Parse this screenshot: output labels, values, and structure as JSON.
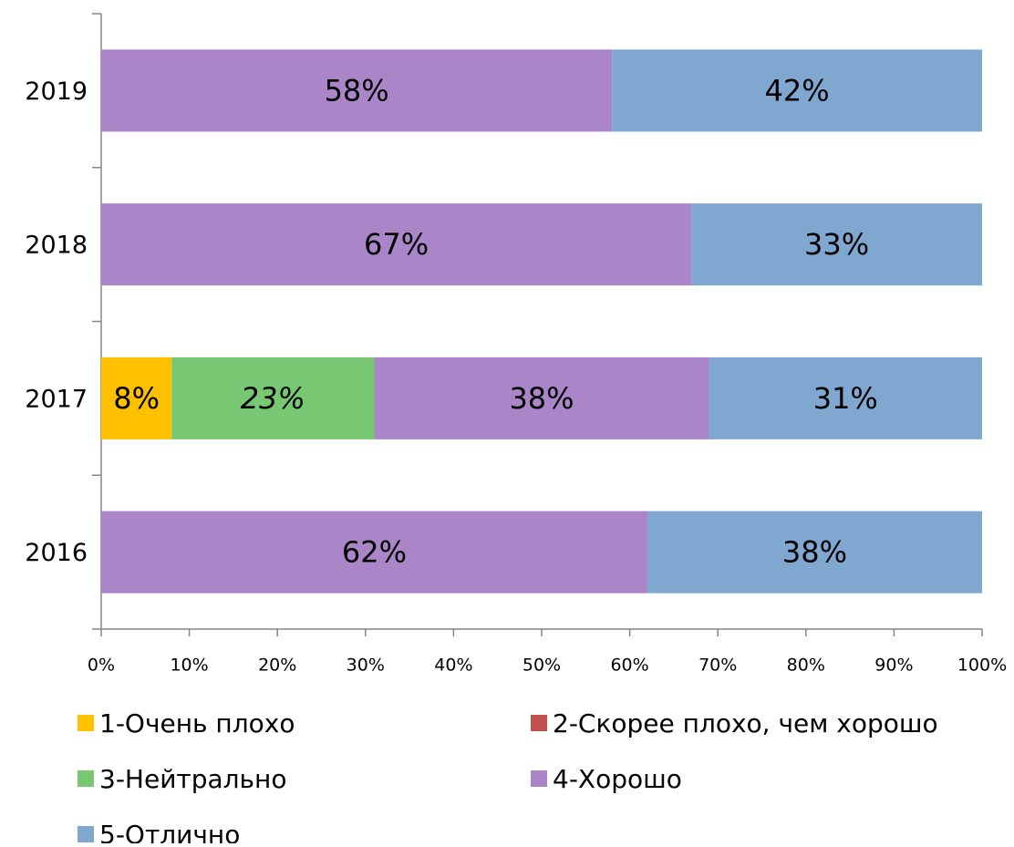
{
  "chart_data": {
    "type": "stacked-barh",
    "categories": [
      "2016",
      "2017",
      "2018",
      "2019"
    ],
    "series": [
      {
        "name": "1-Очень плохо",
        "color": "#ffc000",
        "values": [
          null,
          8,
          null,
          null
        ],
        "value_labels": [
          null,
          "8%",
          null,
          null
        ]
      },
      {
        "name": "2-Скорее плохо, чем хорошо",
        "color": "#c0504d",
        "values": [
          null,
          null,
          null,
          null
        ],
        "value_labels": [
          null,
          null,
          null,
          null
        ]
      },
      {
        "name": "3-Нейтрально",
        "color": "#77c773",
        "values": [
          null,
          23,
          null,
          null
        ],
        "value_labels": [
          null,
          "23%",
          null,
          null
        ]
      },
      {
        "name": "4-Хорошо",
        "color": "#aa85c8",
        "values": [
          62,
          38,
          67,
          58
        ],
        "value_labels": [
          "62%",
          "38%",
          "67%",
          "58%"
        ]
      },
      {
        "name": "5-Отлично",
        "color": "#7fa7cf",
        "values": [
          38,
          31,
          33,
          42
        ],
        "value_labels": [
          "38%",
          "31%",
          "33%",
          "42%"
        ]
      }
    ],
    "xlim": [
      0,
      100
    ],
    "xticks": [
      {
        "value": 0,
        "label": "0%"
      },
      {
        "value": 10,
        "label": "10%"
      },
      {
        "value": 20,
        "label": "20%"
      },
      {
        "value": 30,
        "label": "30%"
      },
      {
        "value": 40,
        "label": "40%"
      },
      {
        "value": 50,
        "label": "50%"
      },
      {
        "value": 60,
        "label": "60%"
      },
      {
        "value": 70,
        "label": "70%"
      },
      {
        "value": 80,
        "label": "80%"
      },
      {
        "value": 90,
        "label": "90%"
      },
      {
        "value": 100,
        "label": "100%"
      }
    ],
    "legend": "bottom"
  }
}
